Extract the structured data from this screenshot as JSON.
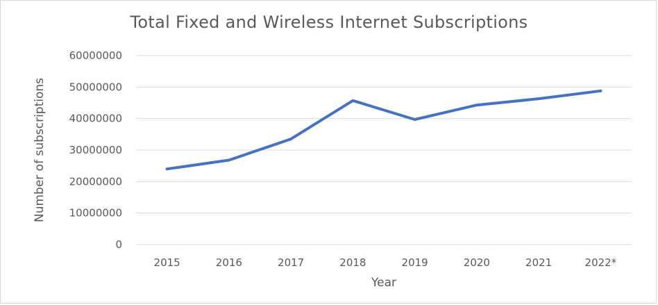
{
  "chart_data": {
    "type": "line",
    "title": "Total Fixed and Wireless Internet Subscriptions",
    "xlabel": "Year",
    "ylabel": "Number of subscriptions",
    "categories": [
      "2015",
      "2016",
      "2017",
      "2018",
      "2019",
      "2020",
      "2021",
      "2022*"
    ],
    "series": [
      {
        "values": [
          24000000,
          26800000,
          33500000,
          45700000,
          39700000,
          44300000,
          46300000,
          48800000
        ],
        "color": "#4472c4"
      }
    ],
    "ylim": [
      0,
      60000000
    ],
    "yticks": [
      "0",
      "10000000",
      "20000000",
      "30000000",
      "40000000",
      "50000000",
      "60000000"
    ],
    "grid": true,
    "gridColor": "#d9d9d9"
  }
}
